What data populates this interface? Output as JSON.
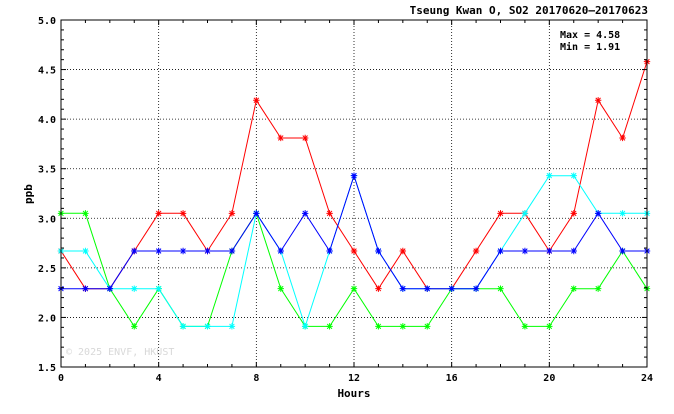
{
  "chart_data": {
    "type": "line",
    "title": "Tseung Kwan O, SO2 20170620–20170623",
    "annotations": [
      "Max = 4.58",
      "Min = 1.91"
    ],
    "watermark": "© 2025  ENVF, HKUST",
    "xlabel": "Hours",
    "ylabel": "ppb",
    "xlim": [
      0,
      24
    ],
    "ylim": [
      1.5,
      5.0
    ],
    "x_ticks": [
      "0",
      "4",
      "8",
      "12",
      "16",
      "20",
      "24"
    ],
    "y_ticks": [
      "1.5",
      "2.0",
      "2.5",
      "3.0",
      "3.5",
      "4.0",
      "4.5",
      "5.0"
    ],
    "grid": true,
    "x": [
      0,
      1,
      2,
      3,
      4,
      5,
      6,
      7,
      8,
      9,
      10,
      11,
      12,
      13,
      14,
      15,
      16,
      17,
      18,
      19,
      20,
      21,
      22,
      23,
      24
    ],
    "series": [
      {
        "color": "#ff0000",
        "values": [
          2.67,
          2.29,
          2.29,
          2.67,
          3.05,
          3.05,
          2.67,
          3.05,
          4.19,
          3.81,
          3.81,
          3.05,
          2.67,
          2.29,
          2.67,
          2.29,
          2.29,
          2.67,
          3.05,
          3.05,
          2.67,
          3.05,
          4.19,
          3.81,
          4.58
        ]
      },
      {
        "color": "#00ff00",
        "values": [
          3.05,
          3.05,
          2.29,
          1.91,
          2.29,
          1.91,
          1.91,
          2.67,
          3.05,
          2.29,
          1.91,
          1.91,
          2.29,
          1.91,
          1.91,
          1.91,
          2.29,
          2.29,
          2.29,
          1.91,
          1.91,
          2.29,
          2.29,
          2.67,
          2.29
        ]
      },
      {
        "color": "#00ffff",
        "values": [
          2.67,
          2.67,
          2.29,
          2.29,
          2.29,
          1.91,
          1.91,
          1.91,
          3.05,
          2.67,
          1.91,
          2.67,
          3.43,
          2.67,
          2.29,
          2.29,
          2.29,
          2.29,
          2.67,
          3.05,
          3.43,
          3.43,
          3.05,
          3.05,
          3.05
        ]
      },
      {
        "color": "#0000ff",
        "values": [
          2.29,
          2.29,
          2.29,
          2.67,
          2.67,
          2.67,
          2.67,
          2.67,
          3.05,
          2.67,
          3.05,
          2.67,
          3.43,
          2.67,
          2.29,
          2.29,
          2.29,
          2.29,
          2.67,
          2.67,
          2.67,
          2.67,
          3.05,
          2.67,
          2.67
        ]
      }
    ]
  }
}
